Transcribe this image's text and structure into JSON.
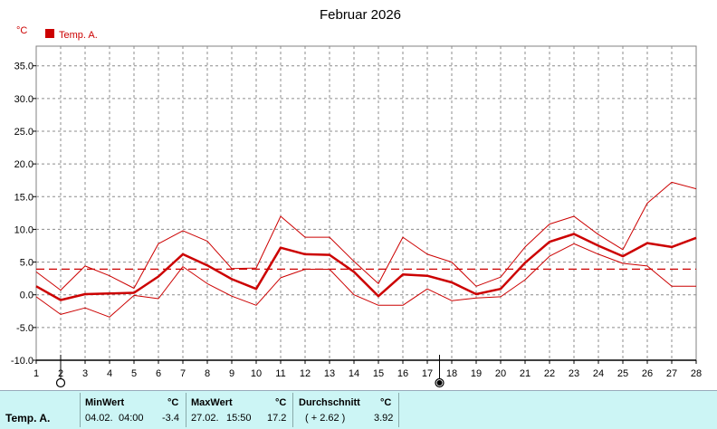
{
  "title": "Februar 2026",
  "unit": "°C",
  "legend": {
    "label": "Temp. A.",
    "color": "#cc0000"
  },
  "chart_data": {
    "type": "line",
    "x": [
      1,
      2,
      3,
      4,
      5,
      6,
      7,
      8,
      9,
      10,
      11,
      12,
      13,
      14,
      15,
      16,
      17,
      18,
      19,
      20,
      21,
      22,
      23,
      24,
      25,
      26,
      27,
      28
    ],
    "ylim": [
      -10,
      38
    ],
    "yticks": [
      "-10.0",
      "-5.0",
      "0.0",
      "5.0",
      "10.0",
      "15.0",
      "20.0",
      "25.0",
      "30.0",
      "35.0"
    ],
    "grid": true,
    "series": [
      {
        "name": "Temp. A.",
        "role": "mean",
        "values": [
          1.3,
          -0.8,
          0.1,
          0.2,
          0.3,
          2.8,
          6.2,
          4.5,
          2.4,
          0.9,
          7.2,
          6.2,
          6.1,
          3.5,
          -0.2,
          3.1,
          2.9,
          1.9,
          0.1,
          0.9,
          4.9,
          8.1,
          9.3,
          7.5,
          5.9,
          7.9,
          7.3,
          8.7
        ]
      },
      {
        "role": "max",
        "values": [
          3.5,
          0.7,
          4.4,
          2.9,
          1.0,
          7.8,
          9.8,
          8.2,
          4.0,
          4.1,
          12.0,
          8.8,
          8.8,
          5.1,
          1.7,
          8.8,
          6.2,
          5.0,
          1.3,
          2.7,
          7.3,
          10.8,
          12.0,
          9.2,
          6.9,
          14.0,
          17.2,
          16.2
        ]
      },
      {
        "role": "min",
        "values": [
          -0.3,
          -3.0,
          -2.0,
          -3.4,
          -0.1,
          -0.6,
          4.3,
          1.7,
          -0.2,
          -1.6,
          2.6,
          3.9,
          3.9,
          0.0,
          -1.6,
          -1.6,
          0.9,
          -0.9,
          -0.5,
          -0.3,
          2.3,
          5.9,
          7.8,
          6.2,
          4.8,
          4.4,
          1.3,
          1.3
        ]
      }
    ],
    "average_line": 3.92,
    "markers": [
      {
        "day": 2,
        "symbol": "open-circle"
      },
      {
        "day": 17.5,
        "symbol": "filled-circle"
      }
    ]
  },
  "stats": {
    "row_label": "Temp. A.",
    "min": {
      "header": "MinWert",
      "unit": "°C",
      "date": "04.02.",
      "time": "04:00",
      "value": "-3.4"
    },
    "max": {
      "header": "MaxWert",
      "unit": "°C",
      "date": "27.02.",
      "time": "15:50",
      "value": "17.2"
    },
    "avg": {
      "header": "Durchschnitt",
      "unit": "°C",
      "delta": "( + 2.62 )",
      "value": "3.92"
    }
  }
}
